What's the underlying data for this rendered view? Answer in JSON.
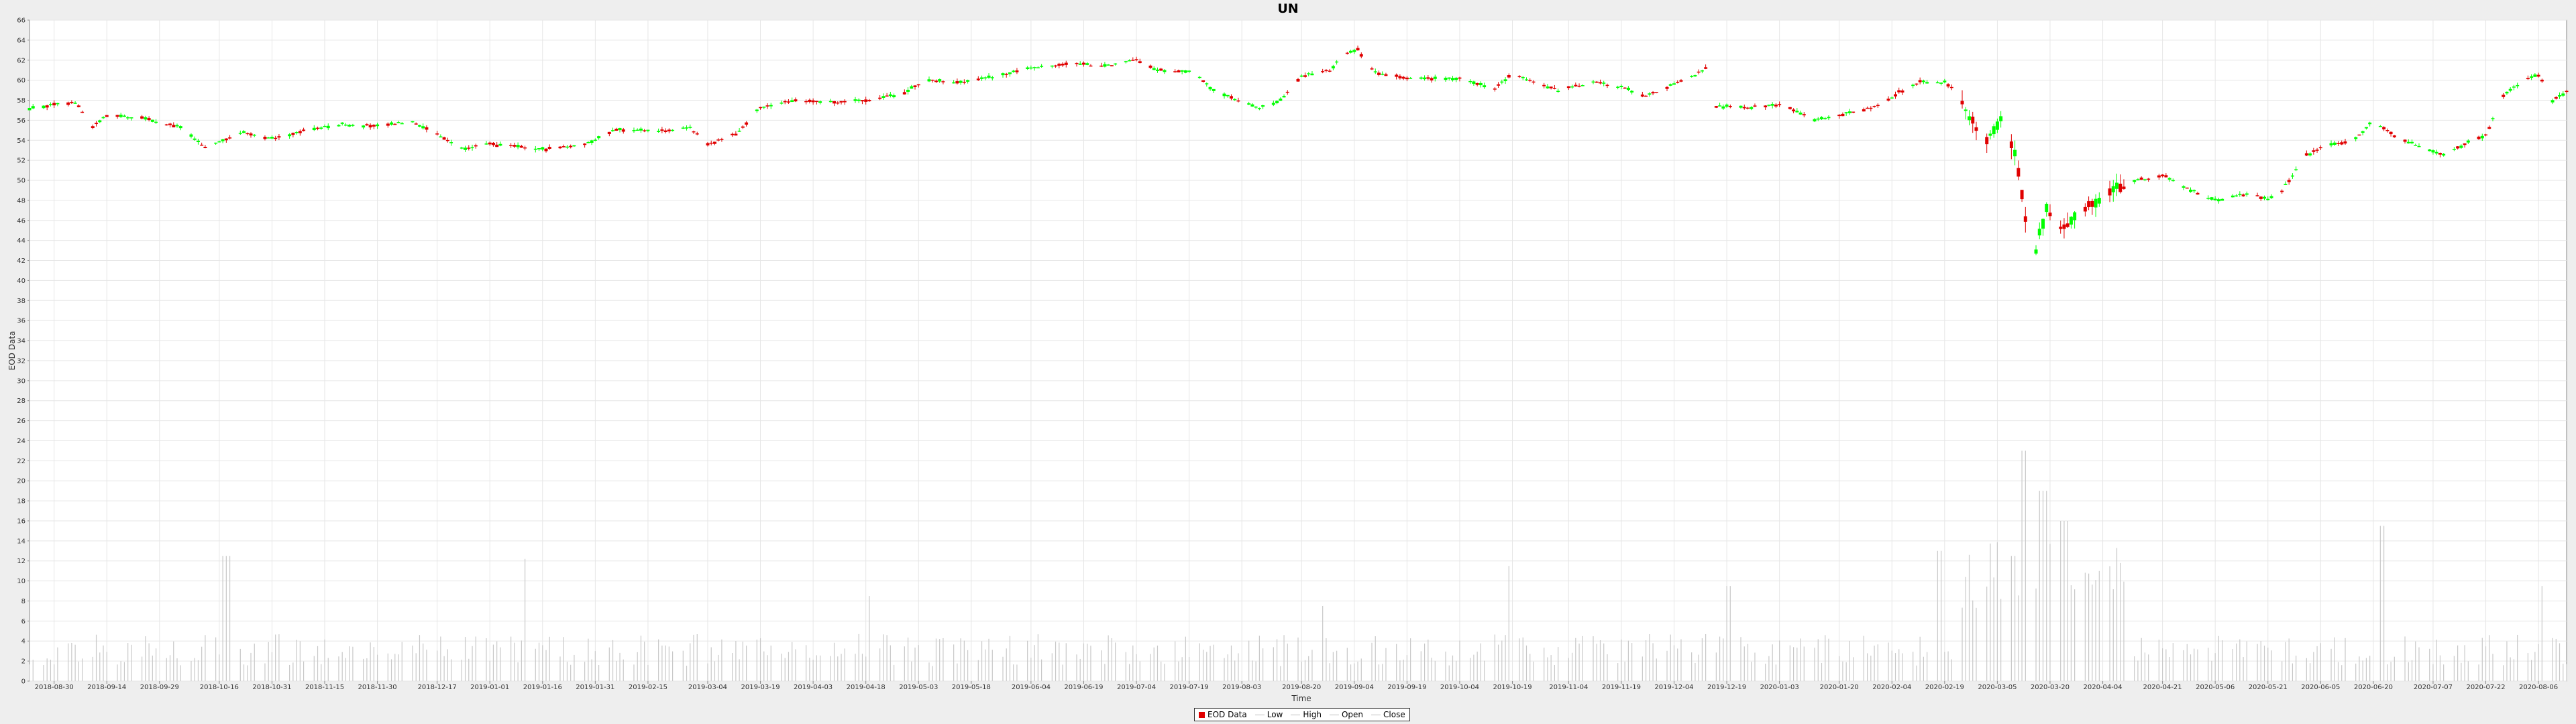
{
  "chart_data": {
    "type": "candlestick",
    "title": "UN",
    "xlabel": "Time",
    "ylabel": "EOD Data",
    "ylim": [
      0,
      66
    ],
    "y_ticks": [
      0,
      2,
      4,
      6,
      8,
      10,
      12,
      14,
      16,
      18,
      20,
      22,
      24,
      26,
      28,
      30,
      32,
      34,
      36,
      38,
      40,
      42,
      44,
      46,
      48,
      50,
      52,
      54,
      56,
      58,
      60,
      62,
      64,
      66
    ],
    "x_ticks": [
      "2018-08-30",
      "2018-09-14",
      "2018-09-29",
      "2018-10-16",
      "2018-10-31",
      "2018-11-15",
      "2018-11-30",
      "2018-12-17",
      "2019-01-01",
      "2019-01-16",
      "2019-01-31",
      "2019-02-15",
      "2019-03-04",
      "2019-03-19",
      "2019-04-03",
      "2019-04-18",
      "2019-05-03",
      "2019-05-18",
      "2019-06-04",
      "2019-06-19",
      "2019-07-04",
      "2019-07-19",
      "2019-08-03",
      "2019-08-20",
      "2019-09-04",
      "2019-09-19",
      "2019-10-04",
      "2019-10-19",
      "2019-11-04",
      "2019-11-19",
      "2019-12-04",
      "2019-12-19",
      "2020-01-03",
      "2020-01-20",
      "2020-02-04",
      "2020-02-19",
      "2020-03-05",
      "2020-03-20",
      "2020-04-04",
      "2020-04-21",
      "2020-05-06",
      "2020-05-21",
      "2020-06-05",
      "2020-06-20",
      "2020-07-07",
      "2020-07-22",
      "2020-08-06"
    ],
    "x_range": [
      "2018-08-23",
      "2020-08-14"
    ],
    "price_anchors": [
      [
        "2018-08-23",
        57.2
      ],
      [
        "2018-09-05",
        57.8
      ],
      [
        "2018-09-10",
        55.3
      ],
      [
        "2018-09-14",
        56.5
      ],
      [
        "2018-09-24",
        56.2
      ],
      [
        "2018-10-05",
        55.3
      ],
      [
        "2018-10-12",
        53.2
      ],
      [
        "2018-10-22",
        54.8
      ],
      [
        "2018-10-31",
        54.2
      ],
      [
        "2018-11-10",
        55.0
      ],
      [
        "2018-11-20",
        55.6
      ],
      [
        "2018-11-30",
        55.4
      ],
      [
        "2018-12-10",
        55.9
      ],
      [
        "2018-12-17",
        54.6
      ],
      [
        "2018-12-24",
        53.2
      ],
      [
        "2019-01-01",
        53.6
      ],
      [
        "2019-01-16",
        53.1
      ],
      [
        "2019-01-28",
        53.6
      ],
      [
        "2019-02-06",
        55.1
      ],
      [
        "2019-02-18",
        54.9
      ],
      [
        "2019-02-27",
        55.2
      ],
      [
        "2019-03-04",
        53.6
      ],
      [
        "2019-03-12",
        54.6
      ],
      [
        "2019-03-19",
        57.3
      ],
      [
        "2019-03-28",
        58.0
      ],
      [
        "2019-04-10",
        57.8
      ],
      [
        "2019-04-18",
        58.0
      ],
      [
        "2019-04-28",
        58.6
      ],
      [
        "2019-05-05",
        60.0
      ],
      [
        "2019-05-15",
        59.8
      ],
      [
        "2019-05-25",
        60.4
      ],
      [
        "2019-06-04",
        61.2
      ],
      [
        "2019-06-15",
        61.7
      ],
      [
        "2019-06-25",
        61.4
      ],
      [
        "2019-07-04",
        62.0
      ],
      [
        "2019-07-10",
        61.0
      ],
      [
        "2019-07-20",
        60.8
      ],
      [
        "2019-07-26",
        59.0
      ],
      [
        "2019-08-03",
        57.8
      ],
      [
        "2019-08-08",
        57.2
      ],
      [
        "2019-08-14",
        58.0
      ],
      [
        "2019-08-20",
        60.4
      ],
      [
        "2019-08-28",
        61.0
      ],
      [
        "2019-09-01",
        62.5
      ],
      [
        "2019-09-05",
        63.0
      ],
      [
        "2019-09-10",
        60.8
      ],
      [
        "2019-09-19",
        60.2
      ],
      [
        "2019-10-04",
        60.2
      ],
      [
        "2019-10-14",
        59.2
      ],
      [
        "2019-10-19",
        60.6
      ],
      [
        "2019-11-01",
        59.0
      ],
      [
        "2019-11-12",
        59.8
      ],
      [
        "2019-11-19",
        59.3
      ],
      [
        "2019-11-26",
        58.4
      ],
      [
        "2019-12-04",
        59.6
      ],
      [
        "2019-12-10",
        60.5
      ],
      [
        "2019-12-14",
        61.5
      ],
      [
        "2019-12-16",
        57.4
      ],
      [
        "2019-12-26",
        57.3
      ],
      [
        "2020-01-03",
        57.6
      ],
      [
        "2020-01-13",
        56.0
      ],
      [
        "2020-01-24",
        56.8
      ],
      [
        "2020-02-01",
        57.5
      ],
      [
        "2020-02-06",
        58.8
      ],
      [
        "2020-02-12",
        59.8
      ],
      [
        "2020-02-19",
        59.8
      ],
      [
        "2020-02-23",
        58.9
      ],
      [
        "2020-02-26",
        56.0
      ],
      [
        "2020-03-02",
        54.0
      ],
      [
        "2020-03-06",
        56.5
      ],
      [
        "2020-03-10",
        53.0
      ],
      [
        "2020-03-13",
        46.0
      ],
      [
        "2020-03-16",
        43.0
      ],
      [
        "2020-03-19",
        47.5
      ],
      [
        "2020-03-24",
        45.0
      ],
      [
        "2020-03-30",
        47.5
      ],
      [
        "2020-04-04",
        48.5
      ],
      [
        "2020-04-14",
        50.0
      ],
      [
        "2020-04-21",
        50.5
      ],
      [
        "2020-04-28",
        49.2
      ],
      [
        "2020-05-06",
        48.0
      ],
      [
        "2020-05-14",
        48.6
      ],
      [
        "2020-05-21",
        48.2
      ],
      [
        "2020-05-25",
        49.0
      ],
      [
        "2020-06-01",
        52.5
      ],
      [
        "2020-06-07",
        53.5
      ],
      [
        "2020-06-14",
        53.8
      ],
      [
        "2020-06-20",
        56.0
      ],
      [
        "2020-06-28",
        54.0
      ],
      [
        "2020-07-03",
        53.5
      ],
      [
        "2020-07-10",
        52.5
      ],
      [
        "2020-07-17",
        53.8
      ],
      [
        "2020-07-22",
        54.5
      ],
      [
        "2020-07-27",
        58.5
      ],
      [
        "2020-08-01",
        59.8
      ],
      [
        "2020-08-06",
        60.5
      ],
      [
        "2020-08-10",
        58.0
      ],
      [
        "2020-08-14",
        58.8
      ]
    ],
    "volume_spikes": [
      [
        "2018-10-18",
        12.5
      ],
      [
        "2019-01-12",
        12.2
      ],
      [
        "2019-04-20",
        8.5
      ],
      [
        "2019-08-25",
        7.5
      ],
      [
        "2019-10-19",
        11.5
      ],
      [
        "2019-12-20",
        9.5
      ],
      [
        "2020-02-17",
        13.0
      ],
      [
        "2020-03-13",
        23.0
      ],
      [
        "2020-03-18",
        19.0
      ],
      [
        "2020-03-24",
        16.0
      ],
      [
        "2020-03-09",
        12.5
      ],
      [
        "2020-06-22",
        15.5
      ],
      [
        "2020-08-08",
        9.5
      ]
    ],
    "legend": [
      "EOD Data",
      "Low",
      "High",
      "Open",
      "Close"
    ],
    "colors": {
      "up": "#00ff00",
      "down": "#e00000",
      "volume": "#c8c8c8",
      "grid": "#e6e6e6",
      "plot_bg": "#ffffff"
    }
  }
}
